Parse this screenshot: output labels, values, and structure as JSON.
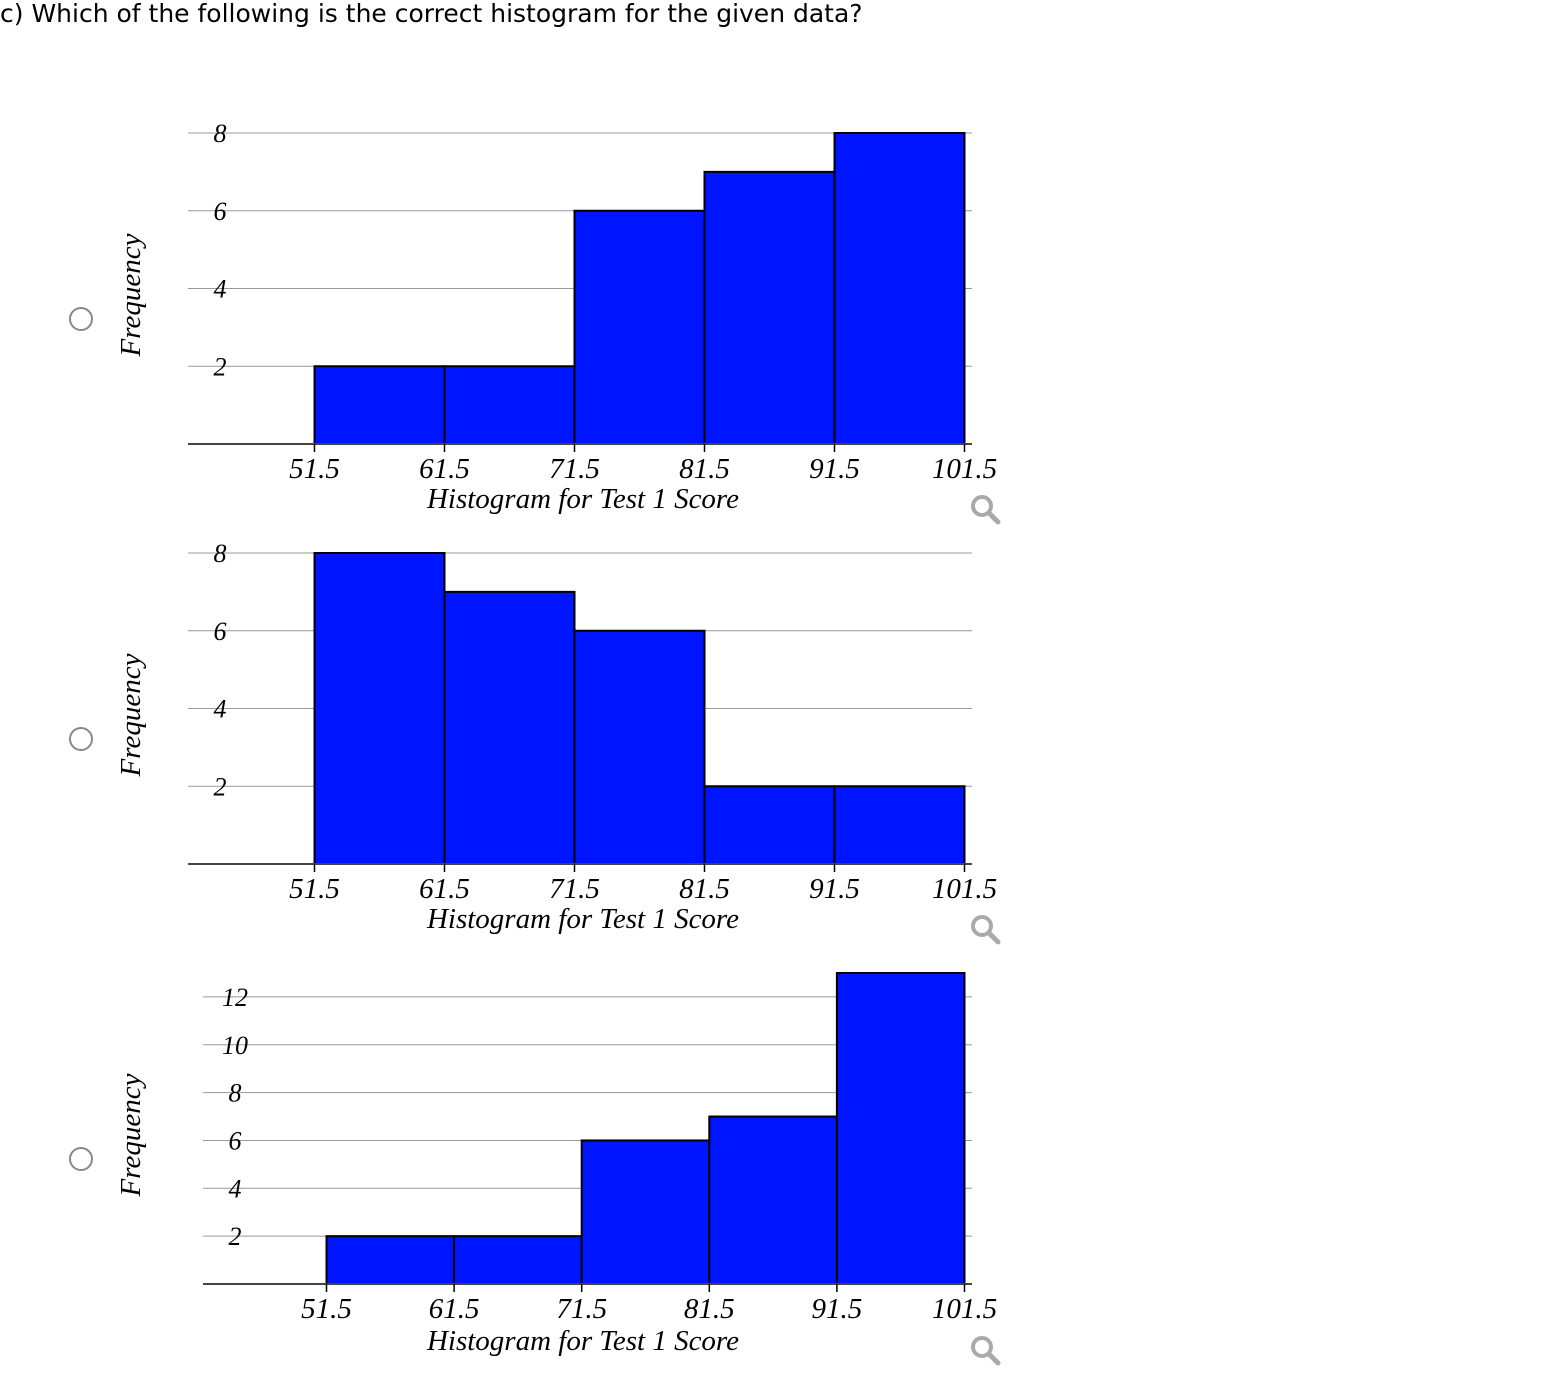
{
  "question": "c) Which of the following is the correct histogram for the given data?",
  "icons": {
    "radio": "radio-button-unselected",
    "zoom": "magnifier-zoom-icon"
  },
  "colors": {
    "bar": "#0015ff",
    "grid": "#999999",
    "zoom": "#aaaaaa",
    "radio": "#888888"
  },
  "chart_data": [
    {
      "type": "bar",
      "title": "",
      "xlabel": "Histogram for Test 1 Score",
      "ylabel": "Frequency",
      "bin_edges": [
        51.5,
        61.5,
        71.5,
        81.5,
        91.5,
        101.5
      ],
      "x_tick_labels": [
        "51.5",
        "61.5",
        "71.5",
        "81.5",
        "91.5",
        "101.5"
      ],
      "values": [
        2,
        2,
        6,
        7,
        8
      ],
      "y_ticks": [
        2,
        4,
        6,
        8
      ],
      "ylim": [
        0,
        8
      ],
      "xlim": [
        41.5,
        101.5
      ],
      "grid": true
    },
    {
      "type": "bar",
      "title": "",
      "xlabel": "Histogram for Test 1 Score",
      "ylabel": "Frequency",
      "bin_edges": [
        51.5,
        61.5,
        71.5,
        81.5,
        91.5,
        101.5
      ],
      "x_tick_labels": [
        "51.5",
        "61.5",
        "71.5",
        "81.5",
        "91.5",
        "101.5"
      ],
      "values": [
        8,
        7,
        6,
        2,
        2
      ],
      "y_ticks": [
        2,
        4,
        6,
        8
      ],
      "ylim": [
        0,
        8
      ],
      "xlim": [
        41.5,
        101.5
      ],
      "grid": true
    },
    {
      "type": "bar",
      "title": "",
      "xlabel": "Histogram for Test 1 Score",
      "ylabel": "Frequency",
      "bin_edges": [
        51.5,
        61.5,
        71.5,
        81.5,
        91.5,
        101.5
      ],
      "x_tick_labels": [
        "51.5",
        "61.5",
        "71.5",
        "81.5",
        "91.5",
        "101.5"
      ],
      "values": [
        2,
        2,
        6,
        7,
        13
      ],
      "y_ticks": [
        2,
        4,
        6,
        8,
        10,
        12
      ],
      "ylim": [
        0,
        13
      ],
      "xlim": [
        41.5,
        101.5
      ],
      "grid": true
    }
  ]
}
